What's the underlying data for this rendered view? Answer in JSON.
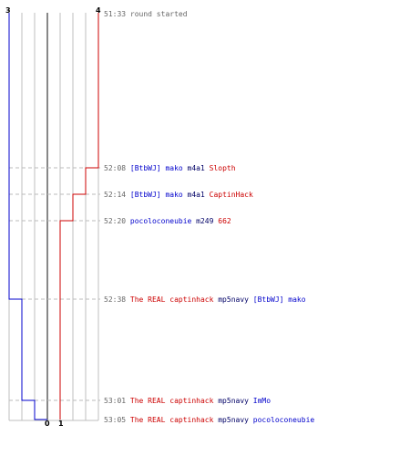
{
  "colors": {
    "blue_team": "#0000cc",
    "red_team": "#cc0000",
    "time": "#666666",
    "text": "#000066",
    "grid": "#bfbfbf",
    "grid_center": "#888888",
    "dashed": "#bbbbbb"
  },
  "score_labels": {
    "blue_start": "3",
    "red_start": "4",
    "blue_end": "0",
    "red_end": "1"
  },
  "events": [
    {
      "time": "51:33",
      "segments": [
        {
          "text": "round started",
          "color": "time"
        }
      ]
    },
    {
      "time": "52:08",
      "segments": [
        {
          "text": "[BtbWJ] mako",
          "color": "blue_team"
        },
        {
          "text": "m4a1",
          "color": "text"
        },
        {
          "text": "Slopth",
          "color": "red_team"
        }
      ]
    },
    {
      "time": "52:14",
      "segments": [
        {
          "text": "[BtbWJ] mako",
          "color": "blue_team"
        },
        {
          "text": "m4a1",
          "color": "text"
        },
        {
          "text": "CaptinHack",
          "color": "red_team"
        }
      ]
    },
    {
      "time": "52:20",
      "segments": [
        {
          "text": "pocoloconeubie",
          "color": "blue_team"
        },
        {
          "text": "m249",
          "color": "text"
        },
        {
          "text": "662",
          "color": "red_team"
        }
      ]
    },
    {
      "time": "52:38",
      "segments": [
        {
          "text": "The REAL captinhack",
          "color": "red_team"
        },
        {
          "text": "mp5navy",
          "color": "text"
        },
        {
          "text": "[BtbWJ] mako",
          "color": "blue_team"
        }
      ]
    },
    {
      "time": "53:01",
      "segments": [
        {
          "text": "The REAL captinhack",
          "color": "red_team"
        },
        {
          "text": "mp5navy",
          "color": "text"
        },
        {
          "text": "ImMo",
          "color": "blue_team"
        }
      ]
    },
    {
      "time": "53:05",
      "segments": [
        {
          "text": "The REAL captinhack",
          "color": "red_team"
        },
        {
          "text": "mp5navy",
          "color": "text"
        },
        {
          "text": "pocoloconeubie",
          "color": "blue_team"
        }
      ]
    }
  ]
}
